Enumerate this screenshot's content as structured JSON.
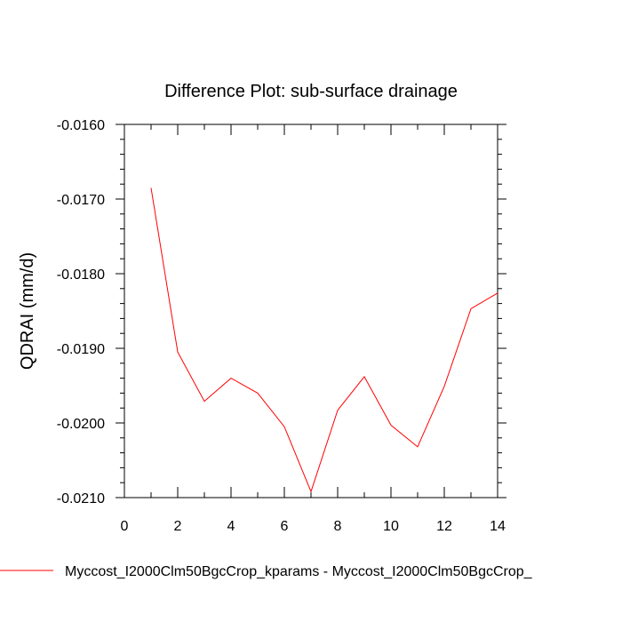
{
  "chart_data": {
    "type": "line",
    "title": "Difference Plot: sub-surface drainage",
    "xlabel": "",
    "ylabel": "QDRAI  (mm/d)",
    "xlim": [
      0,
      14
    ],
    "ylim": [
      -0.021,
      -0.016
    ],
    "x_ticks": [
      0,
      2,
      4,
      6,
      8,
      10,
      12,
      14
    ],
    "x_tick_labels": [
      "0",
      "2",
      "4",
      "6",
      "8",
      "10",
      "12",
      "14"
    ],
    "y_ticks": [
      -0.016,
      -0.017,
      -0.018,
      -0.019,
      -0.02,
      -0.021
    ],
    "y_tick_labels": [
      "-0.0160",
      "-0.0170",
      "-0.0180",
      "-0.0190",
      "-0.0200",
      "-0.0210"
    ],
    "grid": false,
    "legend_position": "bottom",
    "series": [
      {
        "name": "Myccost_I2000Clm50BgcCrop_kparams - Myccost_I2000Clm50BgcCrop_",
        "color": "#ff0000",
        "x": [
          1,
          2,
          3,
          4,
          5,
          6,
          7,
          8,
          9,
          10,
          11,
          12,
          13,
          14
        ],
        "y": [
          -0.01685,
          -0.01905,
          -0.01971,
          -0.0194,
          -0.0196,
          -0.02005,
          -0.02092,
          -0.01983,
          -0.01938,
          -0.02003,
          -0.02032,
          -0.01951,
          -0.01847,
          -0.01826
        ]
      }
    ]
  }
}
